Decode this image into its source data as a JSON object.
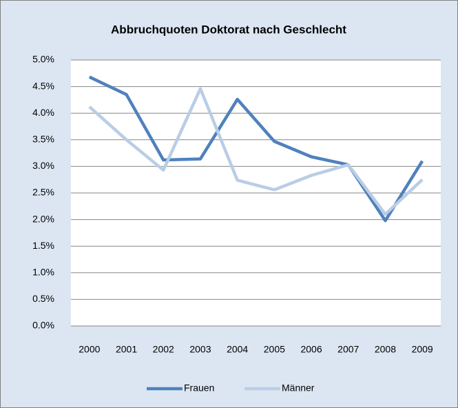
{
  "chart_data": {
    "type": "line",
    "title": "Abbruchquoten Doktorat nach Geschlecht",
    "categories": [
      "2000",
      "2001",
      "2002",
      "2003",
      "2004",
      "2005",
      "2006",
      "2007",
      "2008",
      "2009"
    ],
    "series": [
      {
        "name": "Frauen",
        "color": "#4f81bd",
        "values": [
          4.68,
          4.35,
          3.12,
          3.14,
          4.26,
          3.47,
          3.18,
          3.03,
          1.98,
          3.1
        ]
      },
      {
        "name": "Männer",
        "color": "#b9cde5",
        "values": [
          4.12,
          3.5,
          2.93,
          4.46,
          2.74,
          2.56,
          2.83,
          3.03,
          2.1,
          2.75
        ]
      }
    ],
    "ylim": [
      0,
      5
    ],
    "yticks": [
      {
        "value": 0,
        "label": "0.0%"
      },
      {
        "value": 0.5,
        "label": "0.5%"
      },
      {
        "value": 1,
        "label": "1.0%"
      },
      {
        "value": 1.5,
        "label": "1.5%"
      },
      {
        "value": 2,
        "label": "2.0%"
      },
      {
        "value": 2.5,
        "label": "2.5%"
      },
      {
        "value": 3,
        "label": "3.0%"
      },
      {
        "value": 3.5,
        "label": "3.5%"
      },
      {
        "value": 4,
        "label": "4.0%"
      },
      {
        "value": 4.5,
        "label": "4.5%"
      },
      {
        "value": 5,
        "label": "5.0%"
      }
    ],
    "grid": true,
    "legend": "bottom"
  }
}
